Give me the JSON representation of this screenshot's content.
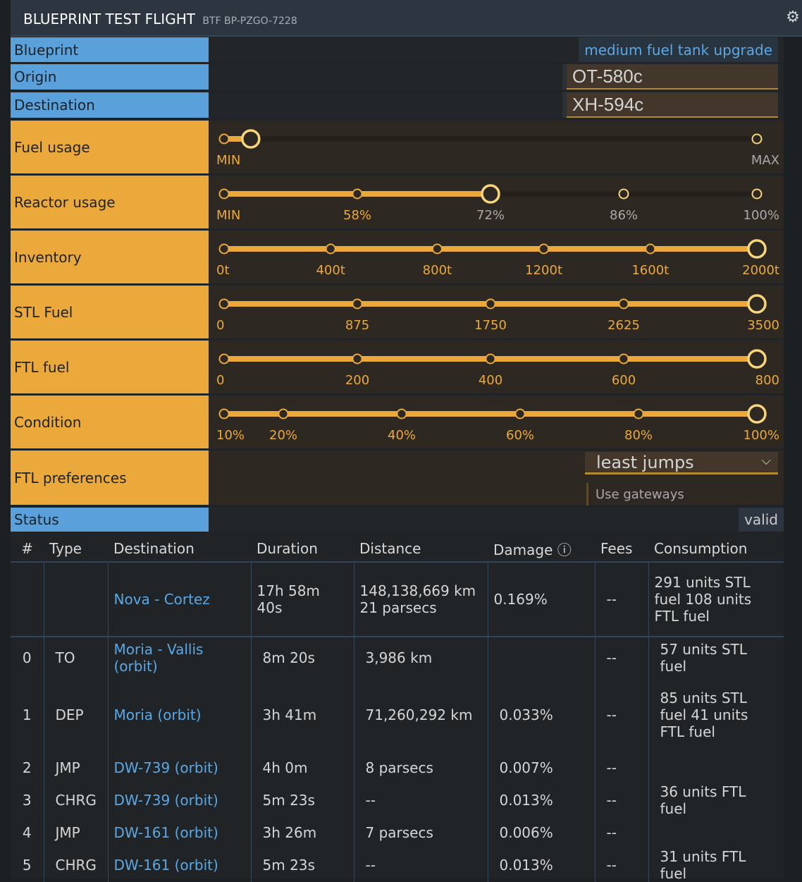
{
  "title": "BLUEPRINT TEST FLIGHT",
  "subtitle": "BTF BP-PZGO-7228",
  "settings_icon": "gear-icon",
  "colors": {
    "accent_orange": "#eca93b",
    "accent_blue": "#5aa0da",
    "link": "#5aa8e6",
    "handle": "#f7d57a"
  },
  "blueprint": {
    "label": "Blueprint",
    "value": "medium fuel tank upgrade"
  },
  "origin": {
    "label": "Origin",
    "value": "OT-580c"
  },
  "destination": {
    "label": "Destination",
    "value": "XH-594c"
  },
  "sliders": [
    {
      "label": "Fuel usage",
      "min": 0,
      "max": 100,
      "value": 5,
      "ticks": [
        0,
        100
      ],
      "tick_labels": [
        "MIN",
        "MAX"
      ]
    },
    {
      "label": "Reactor usage",
      "min": 44,
      "max": 100,
      "value": 72,
      "ticks": [
        44,
        58,
        72,
        86,
        100
      ],
      "tick_labels": [
        "MIN",
        "58%",
        "72%",
        "86%",
        "100%"
      ]
    },
    {
      "label": "Inventory",
      "min": 0,
      "max": 2000,
      "value": 2000,
      "ticks": [
        0,
        400,
        800,
        1200,
        1600,
        2000
      ],
      "tick_labels": [
        "0t",
        "400t",
        "800t",
        "1200t",
        "1600t",
        "2000t"
      ]
    },
    {
      "label": "STL Fuel",
      "min": 0,
      "max": 3500,
      "value": 3500,
      "ticks": [
        0,
        875,
        1750,
        2625,
        3500
      ],
      "tick_labels": [
        "0",
        "875",
        "1750",
        "2625",
        "3500"
      ]
    },
    {
      "label": "FTL fuel",
      "min": 0,
      "max": 800,
      "value": 800,
      "ticks": [
        0,
        200,
        400,
        600,
        800
      ],
      "tick_labels": [
        "0",
        "200",
        "400",
        "600",
        "800"
      ]
    },
    {
      "label": "Condition",
      "min": 10,
      "max": 100,
      "value": 100,
      "ticks": [
        10,
        20,
        40,
        60,
        80,
        100
      ],
      "tick_labels": [
        "10%",
        "20%",
        "40%",
        "60%",
        "80%",
        "100%"
      ]
    }
  ],
  "ftl": {
    "label": "FTL preferences",
    "selected": "least jumps",
    "use_gateways": "Use gateways"
  },
  "status": {
    "label": "Status",
    "value": "valid"
  },
  "table": {
    "headers": [
      "#",
      "Type",
      "Destination",
      "Duration",
      "Distance",
      "Damage ⓘ",
      "Fees",
      "Consumption"
    ],
    "summary": {
      "destination": "Nova - Cortez",
      "duration": "17h 58m 40s",
      "distance": "148,138,669 km 21 parsecs",
      "damage": "0.169%",
      "fees": "--",
      "consumption": "291 units STL fuel 108 units FTL fuel"
    },
    "rows": [
      {
        "n": "0",
        "type": "TO",
        "destination": "Moria - Vallis (orbit)",
        "duration": "8m 20s",
        "distance": "3,986 km",
        "damage": "",
        "fees": "--",
        "consumption": "57 units STL fuel"
      },
      {
        "n": "1",
        "type": "DEP",
        "destination": "Moria (orbit)",
        "duration": "3h 41m",
        "distance": "71,260,292 km",
        "damage": "0.033%",
        "fees": "--",
        "consumption": "85 units STL fuel 41 units FTL fuel"
      },
      {
        "n": "2",
        "type": "JMP",
        "destination": "DW-739 (orbit)",
        "duration": "4h 0m",
        "distance": "8 parsecs",
        "damage": "0.007%",
        "fees": "--",
        "consumption": ""
      },
      {
        "n": "3",
        "type": "CHRG",
        "destination": "DW-739 (orbit)",
        "duration": "5m 23s",
        "distance": "--",
        "damage": "0.013%",
        "fees": "--",
        "consumption": "36 units FTL fuel"
      },
      {
        "n": "4",
        "type": "JMP",
        "destination": "DW-161 (orbit)",
        "duration": "3h 26m",
        "distance": "7 parsecs",
        "damage": "0.006%",
        "fees": "--",
        "consumption": ""
      },
      {
        "n": "5",
        "type": "CHRG",
        "destination": "DW-161 (orbit)",
        "duration": "5m 23s",
        "distance": "--",
        "damage": "0.013%",
        "fees": "--",
        "consumption": "31 units FTL fuel"
      }
    ]
  }
}
